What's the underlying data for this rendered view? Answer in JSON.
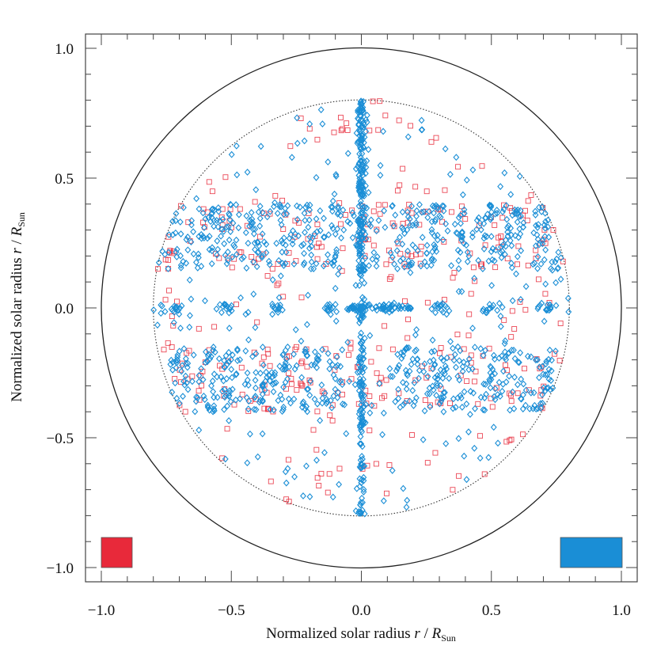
{
  "chart_data": {
    "type": "scatter",
    "title": "",
    "xlabel": {
      "text": "Normalized solar radius",
      "symbol": "r",
      "sep": "/",
      "R": "R",
      "sub": "Sun"
    },
    "ylabel": {
      "text": "Normalized solar radius",
      "symbol": "r",
      "sep": "/",
      "R": "R",
      "sub": "Sun"
    },
    "xlim": [
      -1.0,
      1.0
    ],
    "ylim": [
      -1.0,
      1.0
    ],
    "xticks": [
      {
        "v": -1.0,
        "label": "−1.0"
      },
      {
        "v": -0.5,
        "label": "−0.5"
      },
      {
        "v": 0.0,
        "label": "0.0"
      },
      {
        "v": 0.5,
        "label": "0.5"
      },
      {
        "v": 1.0,
        "label": "1.0"
      }
    ],
    "yticks": [
      {
        "v": 1.0,
        "label": "1.0"
      },
      {
        "v": 0.5,
        "label": "0.5"
      },
      {
        "v": 0.0,
        "label": "0.0"
      },
      {
        "v": -0.5,
        "label": "−0.5"
      },
      {
        "v": -1.0,
        "label": "−1.0"
      }
    ],
    "minor_tick_step": 0.1,
    "circles": [
      {
        "name": "solar-limb",
        "radius": 1.0,
        "style": "solid",
        "color": "#222222"
      },
      {
        "name": "fov-boundary",
        "radius": 0.8,
        "style": "dotted",
        "color": "#333333"
      }
    ],
    "series": [
      {
        "name": "red squares",
        "marker": "square",
        "color": "#e8293a",
        "approx_count": 450
      },
      {
        "name": "blue diamonds",
        "marker": "diamond",
        "color": "#1a8ed6",
        "approx_count": 1400
      }
    ],
    "structures": {
      "vertical_line_x": 0.0,
      "horizontal_line_y": 0.0,
      "horizontal_line_xrange": [
        -0.05,
        0.2
      ],
      "axis_clusters_x": [
        -0.73,
        -0.52,
        -0.32,
        -0.12,
        0.0,
        0.1,
        0.3,
        0.5,
        0.7
      ],
      "axis_clusters_y": [
        0.75,
        0.65,
        0.55,
        0.45,
        0.35,
        0.25,
        0.15
      ],
      "dense_band_y_upper": [
        0.15,
        0.4
      ],
      "dense_band_y_lower": [
        -0.4,
        -0.15
      ],
      "band_cluster_columns_x": [
        -0.7,
        -0.6,
        -0.52,
        -0.4,
        -0.3,
        -0.2,
        -0.1,
        0.18,
        0.28,
        0.38,
        0.5,
        0.58,
        0.7
      ]
    },
    "legend": {
      "placement": "bottom",
      "entries": [
        {
          "name": "red-swatch",
          "color": "#e8293a",
          "position": "bottom-left"
        },
        {
          "name": "blue-swatch",
          "color": "#1a8ed6",
          "position": "bottom-right"
        }
      ]
    }
  }
}
